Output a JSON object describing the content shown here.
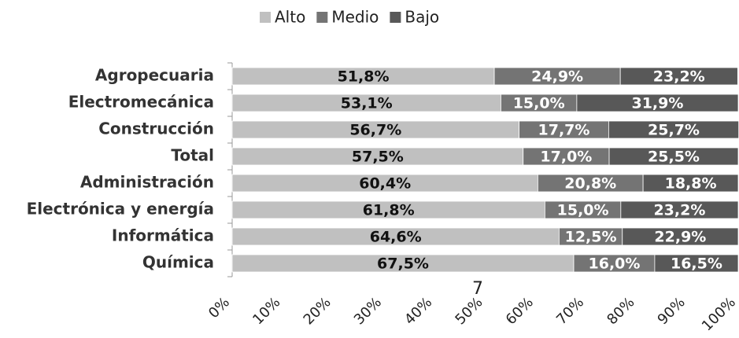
{
  "chart_data": {
    "type": "stacked_barh",
    "categories": [
      "Agropecuaria",
      "Electromecánica",
      "Construcción",
      "Total",
      "Administración",
      "Electrónica y energía",
      "Informática",
      "Química"
    ],
    "series": [
      {
        "name": "Alto",
        "color": "#c0c0c0",
        "values": [
          51.8,
          53.1,
          56.7,
          57.5,
          60.4,
          61.8,
          64.6,
          67.5
        ],
        "value_labels": [
          "51,8%",
          "53,1%",
          "56,7%",
          "57,5%",
          "60,4%",
          "61,8%",
          "64,6%",
          "67,5%"
        ]
      },
      {
        "name": "Medio",
        "color": "#747474",
        "values": [
          24.9,
          15.0,
          17.7,
          17.0,
          20.8,
          15.0,
          12.5,
          16.0
        ],
        "value_labels": [
          "24,9%",
          "15,0%",
          "17,7%",
          "17,0%",
          "20,8%",
          "15,0%",
          "12,5%",
          "16,0%"
        ]
      },
      {
        "name": "Bajo",
        "color": "#585858",
        "values": [
          23.2,
          31.9,
          25.7,
          25.5,
          18.8,
          23.2,
          22.9,
          16.5
        ],
        "value_labels": [
          "23,2%",
          "31,9%",
          "25,7%",
          "25,5%",
          "18,8%",
          "23,2%",
          "22,9%",
          "16,5%"
        ]
      }
    ],
    "xlim": [
      0,
      100
    ],
    "xticks": [
      {
        "value": 0,
        "label": "0%"
      },
      {
        "value": 10,
        "label": "10%"
      },
      {
        "value": 20,
        "label": "20%"
      },
      {
        "value": 30,
        "label": "30%"
      },
      {
        "value": 40,
        "label": "40%"
      },
      {
        "value": 50,
        "label": "50%"
      },
      {
        "value": 60,
        "label": "60%"
      },
      {
        "value": 70,
        "label": "70%"
      },
      {
        "value": 80,
        "label": "80%"
      },
      {
        "value": 90,
        "label": "90%"
      },
      {
        "value": 100,
        "label": "100%"
      }
    ],
    "legend": "top",
    "grid": false,
    "annotation": "7"
  }
}
